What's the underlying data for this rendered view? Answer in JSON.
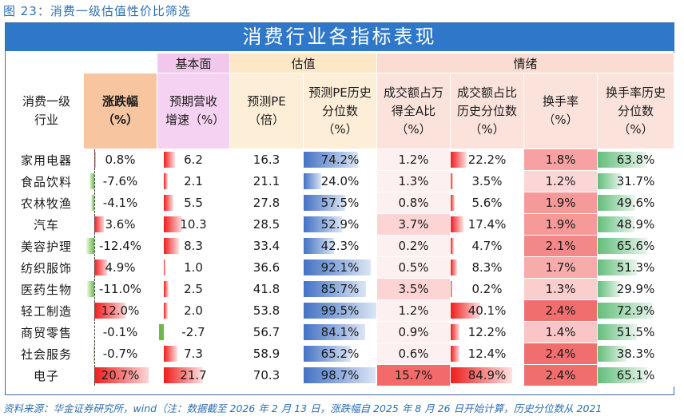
{
  "figure_title": "图 23：消费一级估值性价比筛选",
  "main_title": "消费行业各指标表现",
  "groups": {
    "fundamental": "基本面",
    "valuation": "估值",
    "sentiment": "情绪"
  },
  "headers": {
    "industry": "消费一级行业",
    "change": "涨跌幅（%）",
    "rev_growth": "预期营收增速（%）",
    "pe": "预测PE（倍）",
    "pe_pct": "预测PE历史分位数（%）",
    "turnover_share": "成交额占万得全A比（%）",
    "turnover_pct": "成交额占比历史分位数（%）",
    "turn_rate": "换手率（%）",
    "turn_rate_pct": "换手率历史分位数（%）"
  },
  "rows": [
    {
      "name": "家用电器",
      "change": "0.8%",
      "rev": "6.2",
      "pe": "16.3",
      "pe_pct": "74.2%",
      "share": "1.2%",
      "share_pct": "22.2%",
      "tr": "1.8%",
      "tr_pct": "63.8%"
    },
    {
      "name": "食品饮料",
      "change": "-7.6%",
      "rev": "2.1",
      "pe": "21.1",
      "pe_pct": "24.0%",
      "share": "1.3%",
      "share_pct": "3.5%",
      "tr": "1.2%",
      "tr_pct": "31.7%"
    },
    {
      "name": "农林牧渔",
      "change": "-4.1%",
      "rev": "5.5",
      "pe": "27.8",
      "pe_pct": "57.5%",
      "share": "0.8%",
      "share_pct": "5.6%",
      "tr": "1.9%",
      "tr_pct": "49.6%"
    },
    {
      "name": "汽车",
      "change": "3.6%",
      "rev": "10.3",
      "pe": "28.5",
      "pe_pct": "52.9%",
      "share": "3.7%",
      "share_pct": "17.4%",
      "tr": "1.9%",
      "tr_pct": "48.9%"
    },
    {
      "name": "美容护理",
      "change": "-12.4%",
      "rev": "8.3",
      "pe": "33.4",
      "pe_pct": "42.3%",
      "share": "0.2%",
      "share_pct": "4.7%",
      "tr": "2.1%",
      "tr_pct": "65.6%"
    },
    {
      "name": "纺织服饰",
      "change": "4.9%",
      "rev": "1.0",
      "pe": "36.6",
      "pe_pct": "92.1%",
      "share": "0.5%",
      "share_pct": "8.3%",
      "tr": "1.7%",
      "tr_pct": "51.3%"
    },
    {
      "name": "医药生物",
      "change": "-11.0%",
      "rev": "2.5",
      "pe": "41.8",
      "pe_pct": "85.7%",
      "share": "3.5%",
      "share_pct": "0.2%",
      "tr": "1.3%",
      "tr_pct": "29.9%"
    },
    {
      "name": "轻工制造",
      "change": "12.0%",
      "rev": "2.0",
      "pe": "53.8",
      "pe_pct": "99.5%",
      "share": "1.2%",
      "share_pct": "40.1%",
      "tr": "2.4%",
      "tr_pct": "72.9%"
    },
    {
      "name": "商贸零售",
      "change": "-0.1%",
      "rev": "-2.7",
      "pe": "56.7",
      "pe_pct": "84.1%",
      "share": "0.9%",
      "share_pct": "12.2%",
      "tr": "1.4%",
      "tr_pct": "51.5%"
    },
    {
      "name": "社会服务",
      "change": "-0.7%",
      "rev": "7.3",
      "pe": "58.9",
      "pe_pct": "65.2%",
      "share": "0.6%",
      "share_pct": "12.4%",
      "tr": "2.4%",
      "tr_pct": "38.3%"
    },
    {
      "name": "电子",
      "change": "20.7%",
      "rev": "21.7",
      "pe": "70.3",
      "pe_pct": "98.7%",
      "share": "15.7%",
      "share_pct": "84.9%",
      "tr": "2.4%",
      "tr_pct": "65.1%"
    }
  ],
  "footer": "资料来源：华金证券研究所，wind（注：数据截至 2026 年 2 月 13 日，涨跌幅自 2025 年 8 月 26 日开始计算，历史分位数从 2021"
}
